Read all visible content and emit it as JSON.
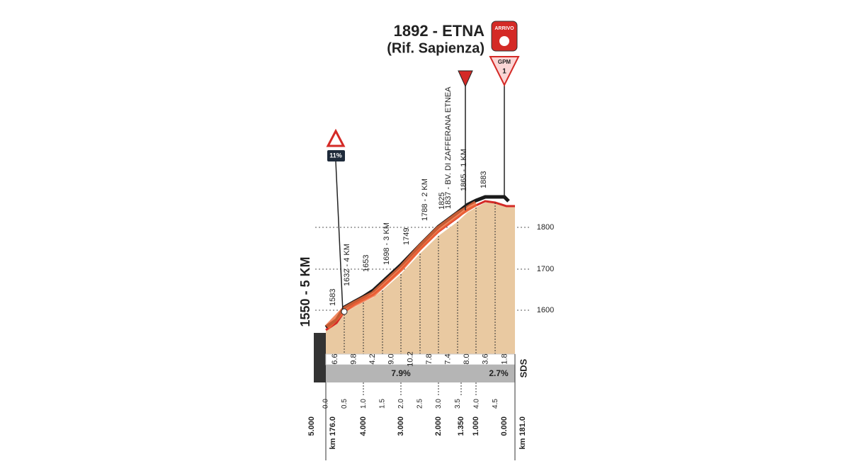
{
  "header": {
    "title": "1892 - ETNA",
    "subtitle": "(Rif. Sapienza)",
    "finish_badge": "ARRIVO",
    "climb_badge": {
      "label": "GPM",
      "category": "1"
    }
  },
  "steep_marker": {
    "label": "11%"
  },
  "start_label": "1550 - 5 KM",
  "elevation_labels": [
    "1583",
    "1632 - 4 KM",
    "1653",
    "1698 - 3 KM",
    "1749",
    "1788 - 2 KM",
    "1825",
    "1837 - BV. DI ZAFFERANA ETNEA",
    "1865 - 1 KM",
    "1883"
  ],
  "altitude_ticks": [
    "1800",
    "1700",
    "1600"
  ],
  "gradients": [
    "6.6",
    "9.8",
    "4.2",
    "9.0",
    "10.2",
    "7.8",
    "7.4",
    "8.0",
    "3.6",
    "1.8"
  ],
  "average_gradients": [
    "7.9%",
    "2.7%"
  ],
  "road_label": "SDS",
  "km_ticks": [
    "0.0",
    "0.5",
    "1.0",
    "1.5",
    "2.0",
    "2.5",
    "3.0",
    "3.5",
    "4.0",
    "4.5"
  ],
  "remaining_km": [
    "5.000",
    "km 176.0",
    "4.000",
    "3.000",
    "2.000",
    "1.350",
    "1.000",
    "0.000",
    "km 181.0"
  ]
}
